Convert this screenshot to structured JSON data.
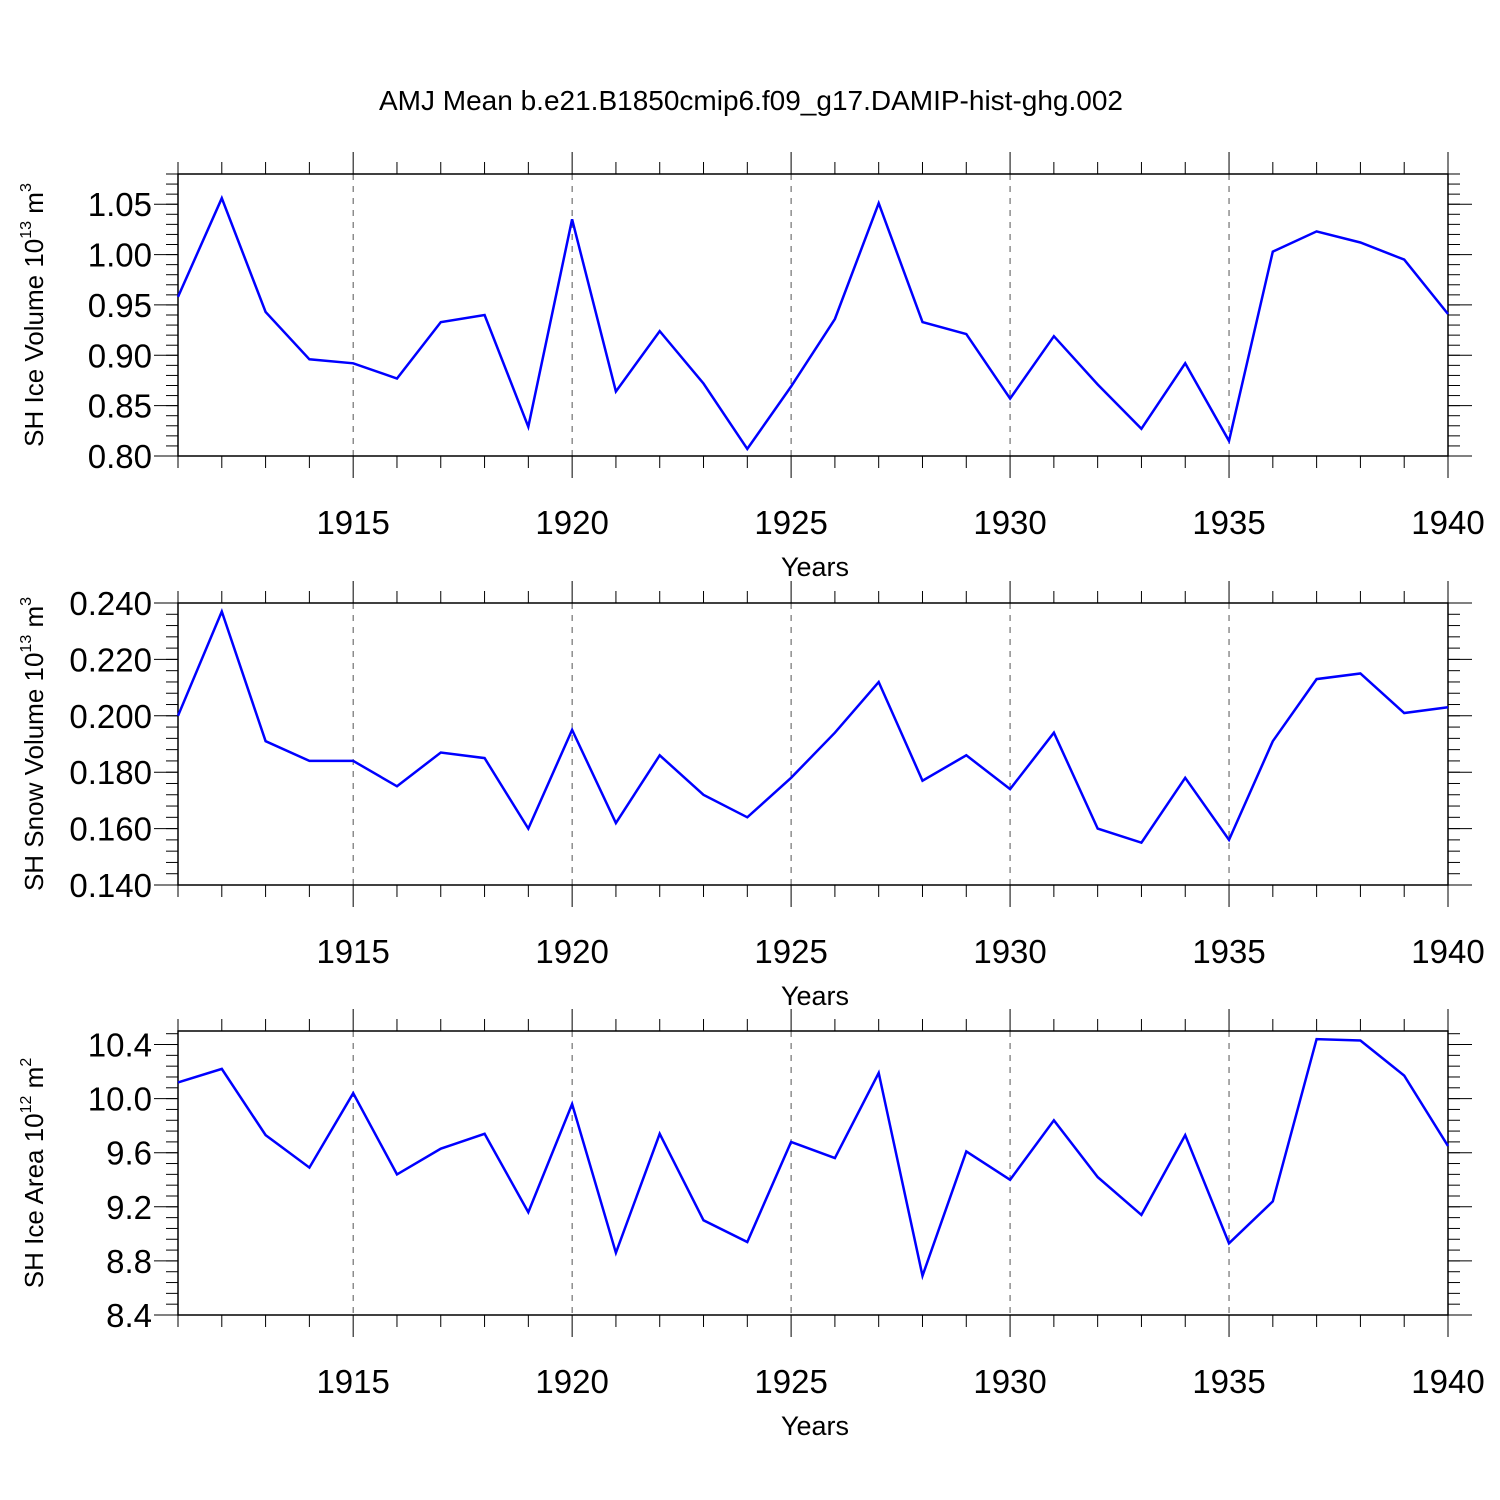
{
  "title": "AMJ Mean b.e21.B1850cmip6.f09_g17.DAMIP-hist-ghg.002",
  "colors": {
    "line": "#0000ff",
    "axis": "#000000",
    "grid": "#555555",
    "background": "#ffffff"
  },
  "chart_data": [
    {
      "type": "line",
      "ylabel": {
        "main": "SH Ice Volume 10",
        "exp": "13",
        "unit": " m",
        "unit_exp": "3"
      },
      "xlabel": "Years",
      "xlim": [
        1911,
        1940
      ],
      "ylim": [
        0.8,
        1.08
      ],
      "yticks": [
        "0.80",
        "0.85",
        "0.90",
        "0.95",
        "1.00",
        "1.05"
      ],
      "xticks": [
        "1915",
        "1920",
        "1925",
        "1930",
        "1935",
        "1940"
      ],
      "grid": "vertical dashed at labeled years",
      "x": [
        1911,
        1912,
        1913,
        1914,
        1915,
        1916,
        1917,
        1918,
        1919,
        1920,
        1921,
        1922,
        1923,
        1924,
        1925,
        1926,
        1927,
        1928,
        1929,
        1930,
        1931,
        1932,
        1933,
        1934,
        1935,
        1936,
        1937,
        1938,
        1939,
        1940
      ],
      "series": [
        {
          "values": [
            0.958,
            1.056,
            0.943,
            0.896,
            0.892,
            0.877,
            0.933,
            0.94,
            0.829,
            1.035,
            0.864,
            0.924,
            0.872,
            0.807,
            0.869,
            0.936,
            1.051,
            0.933,
            0.921,
            0.857,
            0.919,
            0.871,
            0.827,
            0.892,
            0.815,
            1.003,
            1.023,
            1.012,
            0.995,
            0.941
          ]
        }
      ]
    },
    {
      "type": "line",
      "ylabel": {
        "main": "SH Snow Volume 10",
        "exp": "13",
        "unit": " m",
        "unit_exp": "3"
      },
      "xlabel": "Years",
      "xlim": [
        1911,
        1940
      ],
      "ylim": [
        0.14,
        0.24
      ],
      "yticks": [
        "0.140",
        "0.160",
        "0.180",
        "0.200",
        "0.220",
        "0.240"
      ],
      "xticks": [
        "1915",
        "1920",
        "1925",
        "1930",
        "1935",
        "1940"
      ],
      "grid": "vertical dashed at labeled years",
      "x": [
        1911,
        1912,
        1913,
        1914,
        1915,
        1916,
        1917,
        1918,
        1919,
        1920,
        1921,
        1922,
        1923,
        1924,
        1925,
        1926,
        1927,
        1928,
        1929,
        1930,
        1931,
        1932,
        1933,
        1934,
        1935,
        1936,
        1937,
        1938,
        1939,
        1940
      ],
      "series": [
        {
          "values": [
            0.2,
            0.237,
            0.191,
            0.184,
            0.184,
            0.175,
            0.187,
            0.185,
            0.16,
            0.195,
            0.162,
            0.186,
            0.172,
            0.164,
            0.178,
            0.194,
            0.212,
            0.177,
            0.186,
            0.174,
            0.194,
            0.16,
            0.155,
            0.178,
            0.156,
            0.191,
            0.213,
            0.215,
            0.201,
            0.203
          ]
        }
      ]
    },
    {
      "type": "line",
      "ylabel": {
        "main": "SH Ice Area 10",
        "exp": "12",
        "unit": " m",
        "unit_exp": "2"
      },
      "xlabel": "Years",
      "xlim": [
        1911,
        1940
      ],
      "ylim": [
        8.4,
        10.5
      ],
      "yticks": [
        "8.4",
        "8.8",
        "9.2",
        "9.6",
        "10.0",
        "10.4"
      ],
      "xticks": [
        "1915",
        "1920",
        "1925",
        "1930",
        "1935",
        "1940"
      ],
      "grid": "vertical dashed at labeled years",
      "x": [
        1911,
        1912,
        1913,
        1914,
        1915,
        1916,
        1917,
        1918,
        1919,
        1920,
        1921,
        1922,
        1923,
        1924,
        1925,
        1926,
        1927,
        1928,
        1929,
        1930,
        1931,
        1932,
        1933,
        1934,
        1935,
        1936,
        1937,
        1938,
        1939,
        1940
      ],
      "series": [
        {
          "values": [
            10.12,
            10.22,
            9.73,
            9.49,
            10.04,
            9.44,
            9.63,
            9.74,
            9.16,
            9.96,
            8.86,
            9.74,
            9.1,
            8.94,
            9.68,
            9.56,
            10.19,
            8.69,
            9.61,
            9.4,
            9.84,
            9.42,
            9.14,
            9.73,
            8.93,
            9.24,
            10.44,
            10.43,
            10.17,
            9.65
          ]
        }
      ]
    }
  ]
}
